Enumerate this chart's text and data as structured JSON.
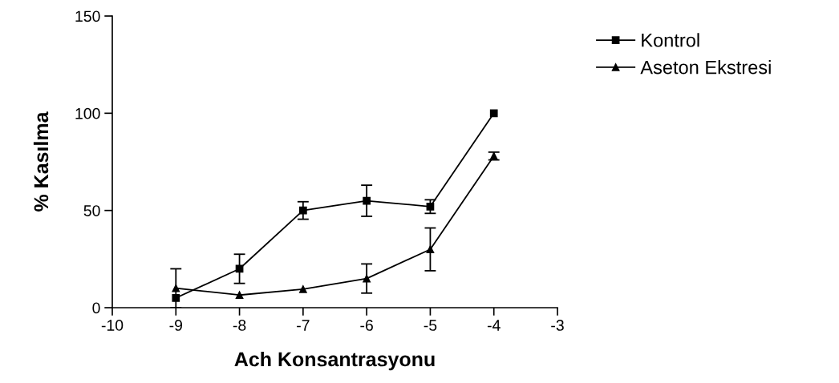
{
  "chart_data": {
    "type": "line",
    "xlabel": "Ach Konsantrasyonu",
    "ylabel": "% Kasılma",
    "x": [
      -9,
      -8,
      -7,
      -6,
      -5,
      -4
    ],
    "series": [
      {
        "name": "Kontrol",
        "color": "#000000",
        "marker": "square",
        "values": [
          5,
          20,
          50,
          55,
          52,
          100
        ],
        "errors": [
          null,
          7.5,
          4.5,
          8,
          3.5,
          null
        ]
      },
      {
        "name": "Aseton Ekstresi",
        "color": "#000000",
        "marker": "triangle",
        "values": [
          10,
          6.5,
          9.5,
          15,
          30,
          78
        ],
        "errors": [
          10,
          null,
          null,
          7.5,
          11,
          2
        ]
      }
    ],
    "xlim": [
      -10,
      -3
    ],
    "xticks": [
      -10,
      -9,
      -8,
      -7,
      -6,
      -5,
      -4,
      -3
    ],
    "ylim": [
      0,
      150
    ],
    "yticks": [
      0,
      50,
      100,
      150
    ],
    "grid": false,
    "legend": "top right",
    "line_style": "solid"
  }
}
